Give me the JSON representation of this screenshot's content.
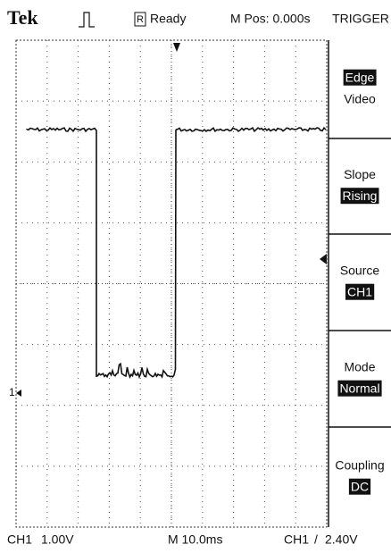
{
  "header": {
    "brand": "Tek",
    "status_icon": "R",
    "status": "Ready",
    "position": "M Pos: 0.000s",
    "menu_title": "TRIGGER"
  },
  "menu": [
    {
      "texts": [
        "Edge",
        "Video"
      ],
      "highlight": 0
    },
    {
      "texts": [
        "Slope",
        "Rising"
      ],
      "highlight": 1
    },
    {
      "texts": [
        "Source",
        "CH1"
      ],
      "highlight": 1
    },
    {
      "texts": [
        "Mode",
        "Normal"
      ],
      "highlight": 1
    },
    {
      "texts": [
        "Coupling",
        "DC"
      ],
      "highlight": 1
    }
  ],
  "marker": "1",
  "footer": {
    "ch1_label": "CH1",
    "ch1_scale": "1.00V",
    "timebase": "M 10.0ms",
    "trigger_source": "CH1",
    "trigger_slope": "/",
    "trigger_level": "2.40V"
  }
}
